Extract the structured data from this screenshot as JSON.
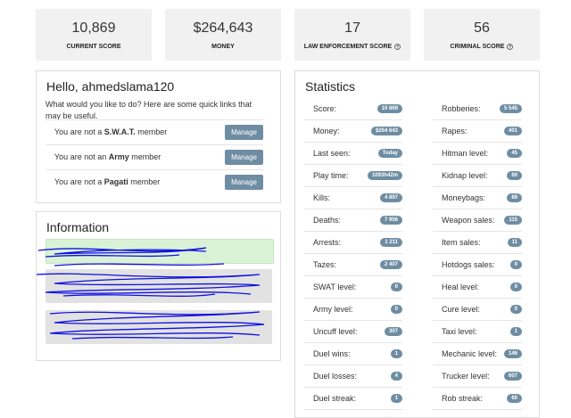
{
  "cards": [
    {
      "value": "10,869",
      "label": "CURRENT SCORE"
    },
    {
      "value": "$264,643",
      "label": "MONEY"
    },
    {
      "value": "17",
      "label": "LAW ENFORCEMENT SCORE"
    },
    {
      "value": "56",
      "label": "CRIMINAL SCORE"
    }
  ],
  "welcome": {
    "title": "Hello, ahmedslama120",
    "text": "What would you like to do? Here are some quick links that may be useful.",
    "memberships": [
      {
        "prefix": "You are not a",
        "org": "S.W.A.T.",
        "suffix": "member",
        "button": "Manage"
      },
      {
        "prefix": "You are not an",
        "org": "Army",
        "suffix": "member",
        "button": "Manage"
      },
      {
        "prefix": "You are not a",
        "org": "Pagati",
        "suffix": "member",
        "button": "Manage"
      }
    ]
  },
  "information": {
    "title": "Information"
  },
  "statistics": {
    "title": "Statistics",
    "left": [
      [
        "Score:",
        "10 869"
      ],
      [
        "Money:",
        "$264 643"
      ],
      [
        "Last seen:",
        "Today"
      ],
      [
        "Play time:",
        "1093h42m"
      ],
      [
        "Kills:",
        "4 897"
      ],
      [
        "Deaths:",
        "7 956"
      ],
      [
        "Arrests:",
        "1 211"
      ],
      [
        "Tazes:",
        "2 407"
      ],
      [
        "SWAT level:",
        "0"
      ],
      [
        "Army level:",
        "0"
      ],
      [
        "Uncuff level:",
        "307"
      ],
      [
        "Duel wins:",
        "1"
      ],
      [
        "Duel losses:",
        "4"
      ],
      [
        "Duel streak:",
        "1"
      ]
    ],
    "right": [
      [
        "Robberies:",
        "5 545"
      ],
      [
        "Rapes:",
        "401"
      ],
      [
        "Hitman level:",
        "45"
      ],
      [
        "Kidnap level:",
        "60"
      ],
      [
        "Moneybags:",
        "89"
      ],
      [
        "Weapon sales:",
        "115"
      ],
      [
        "Item sales:",
        "11"
      ],
      [
        "Hotdogs sales:",
        "0"
      ],
      [
        "Heal level:",
        "0"
      ],
      [
        "Cure level:",
        "0"
      ],
      [
        "Taxi level:",
        "1"
      ],
      [
        "Mechanic level:",
        "146"
      ],
      [
        "Trucker level:",
        "607"
      ],
      [
        "Rob streak:",
        "60"
      ]
    ]
  }
}
